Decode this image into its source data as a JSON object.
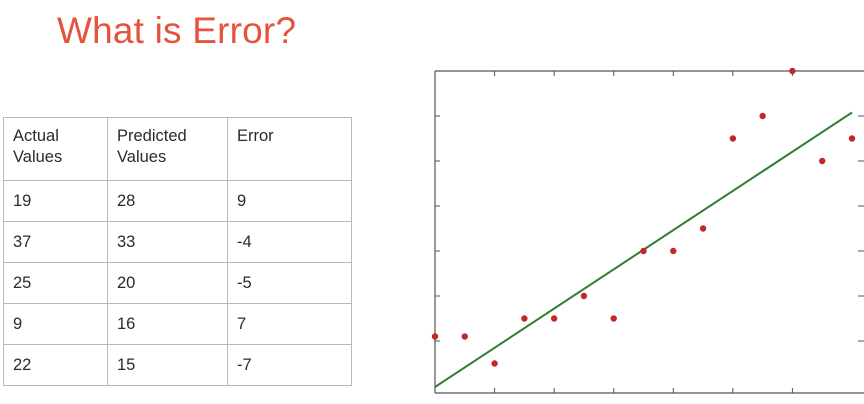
{
  "title": "What is Error?",
  "table": {
    "headers": [
      [
        "Actual",
        "Values"
      ],
      [
        "Predicted",
        "Values"
      ],
      [
        "Error"
      ]
    ],
    "rows": [
      [
        "19",
        "28",
        "9"
      ],
      [
        "37",
        "33",
        "-4"
      ],
      [
        "25",
        "20",
        "-5"
      ],
      [
        "9",
        "16",
        "7"
      ],
      [
        "22",
        "15",
        "-7"
      ]
    ]
  },
  "colors": {
    "title": "#e5533d",
    "points": "#c0282a",
    "fit_line": "#2e7d32",
    "axes": "#555555"
  },
  "chart_data": {
    "type": "scatter",
    "title": "",
    "xlabel": "",
    "ylabel": "",
    "xlim": [
      0,
      14
    ],
    "ylim": [
      0,
      7
    ],
    "grid": false,
    "ticks": "inward, unlabeled",
    "series": [
      {
        "kind": "points",
        "x": [
          0,
          1,
          2,
          3,
          4,
          5,
          6,
          7,
          8,
          9,
          10,
          11,
          12,
          13,
          14
        ],
        "y": [
          1.1,
          1.1,
          0.5,
          1.5,
          1.5,
          2.0,
          1.5,
          3.0,
          3.0,
          3.5,
          5.5,
          6.0,
          7.0,
          5.0,
          5.5
        ]
      },
      {
        "kind": "fit-line",
        "x": [
          0,
          14
        ],
        "y": [
          0.0,
          6.1
        ]
      }
    ]
  }
}
